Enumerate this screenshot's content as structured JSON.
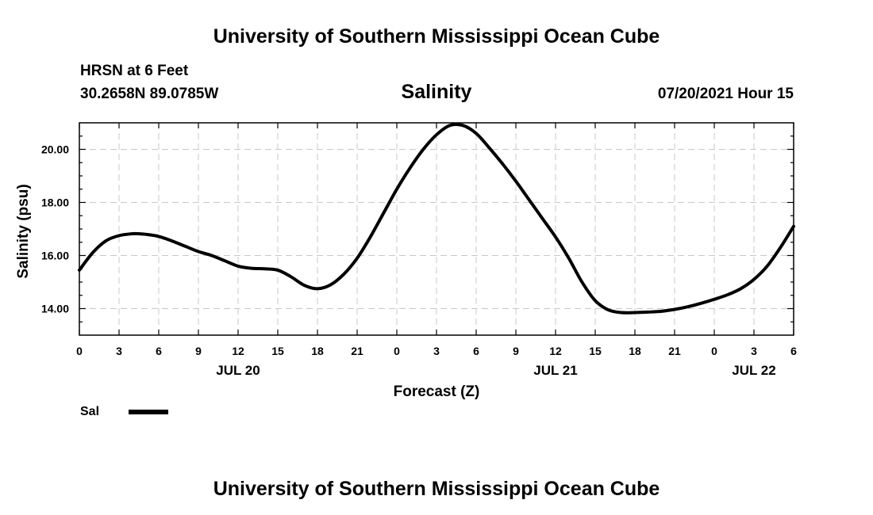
{
  "header": {
    "title": "University of Southern Mississippi Ocean Cube",
    "station": "HRSN at 6 Feet",
    "coordinates": "30.2658N  89.0785W",
    "datetime": "07/20/2021 Hour 15"
  },
  "footer": {
    "title": "University of Southern Mississippi Ocean Cube"
  },
  "chart_data": {
    "type": "line",
    "title": "Salinity",
    "xlabel": "Forecast (Z)",
    "ylabel": "Salinity (psu)",
    "xlim": [
      0,
      54
    ],
    "ylim": [
      13.0,
      21.0
    ],
    "x_ticks": [
      {
        "x": 0,
        "label": "0"
      },
      {
        "x": 3,
        "label": "3"
      },
      {
        "x": 6,
        "label": "6"
      },
      {
        "x": 9,
        "label": "9"
      },
      {
        "x": 12,
        "label": "12"
      },
      {
        "x": 15,
        "label": "15"
      },
      {
        "x": 18,
        "label": "18"
      },
      {
        "x": 21,
        "label": "21"
      },
      {
        "x": 24,
        "label": "0"
      },
      {
        "x": 27,
        "label": "3"
      },
      {
        "x": 30,
        "label": "6"
      },
      {
        "x": 33,
        "label": "9"
      },
      {
        "x": 36,
        "label": "12"
      },
      {
        "x": 39,
        "label": "15"
      },
      {
        "x": 42,
        "label": "18"
      },
      {
        "x": 45,
        "label": "21"
      },
      {
        "x": 48,
        "label": "0"
      },
      {
        "x": 51,
        "label": "3"
      },
      {
        "x": 54,
        "label": "6"
      }
    ],
    "y_ticks": [
      {
        "y": 14,
        "label": "14.00"
      },
      {
        "y": 16,
        "label": "16.00"
      },
      {
        "y": 18,
        "label": "18.00"
      },
      {
        "y": 20,
        "label": "20.00"
      }
    ],
    "date_labels": [
      {
        "x": 12,
        "label": "JUL 20"
      },
      {
        "x": 36,
        "label": "JUL 21"
      },
      {
        "x": 51,
        "label": "JUL 22"
      }
    ],
    "grid": true,
    "legend": {
      "position": "bottom-left",
      "entries": [
        {
          "name": "Sal"
        }
      ]
    },
    "series": [
      {
        "name": "Sal",
        "color": "#000000",
        "x": [
          0,
          1,
          2,
          3,
          4,
          4.5,
          5,
          6,
          7,
          8,
          9,
          10,
          11,
          12,
          13,
          14,
          15,
          16,
          17,
          18,
          19,
          20,
          21,
          22,
          23,
          24,
          25,
          26,
          27,
          28,
          29,
          30,
          31,
          32,
          33,
          34,
          35,
          36,
          37,
          38,
          39,
          40,
          41,
          42,
          43,
          44,
          45,
          46,
          47,
          48,
          49,
          50,
          51,
          52,
          53,
          54
        ],
        "values": [
          15.45,
          16.1,
          16.55,
          16.75,
          16.82,
          16.82,
          16.8,
          16.72,
          16.55,
          16.35,
          16.15,
          16.0,
          15.8,
          15.6,
          15.52,
          15.5,
          15.45,
          15.2,
          14.88,
          14.75,
          14.9,
          15.3,
          15.9,
          16.7,
          17.6,
          18.5,
          19.3,
          20.0,
          20.55,
          20.9,
          20.9,
          20.6,
          20.05,
          19.45,
          18.8,
          18.1,
          17.4,
          16.7,
          15.9,
          15.0,
          14.3,
          13.95,
          13.85,
          13.85,
          13.87,
          13.9,
          13.97,
          14.07,
          14.2,
          14.35,
          14.52,
          14.75,
          15.1,
          15.6,
          16.3,
          17.1
        ]
      }
    ]
  }
}
